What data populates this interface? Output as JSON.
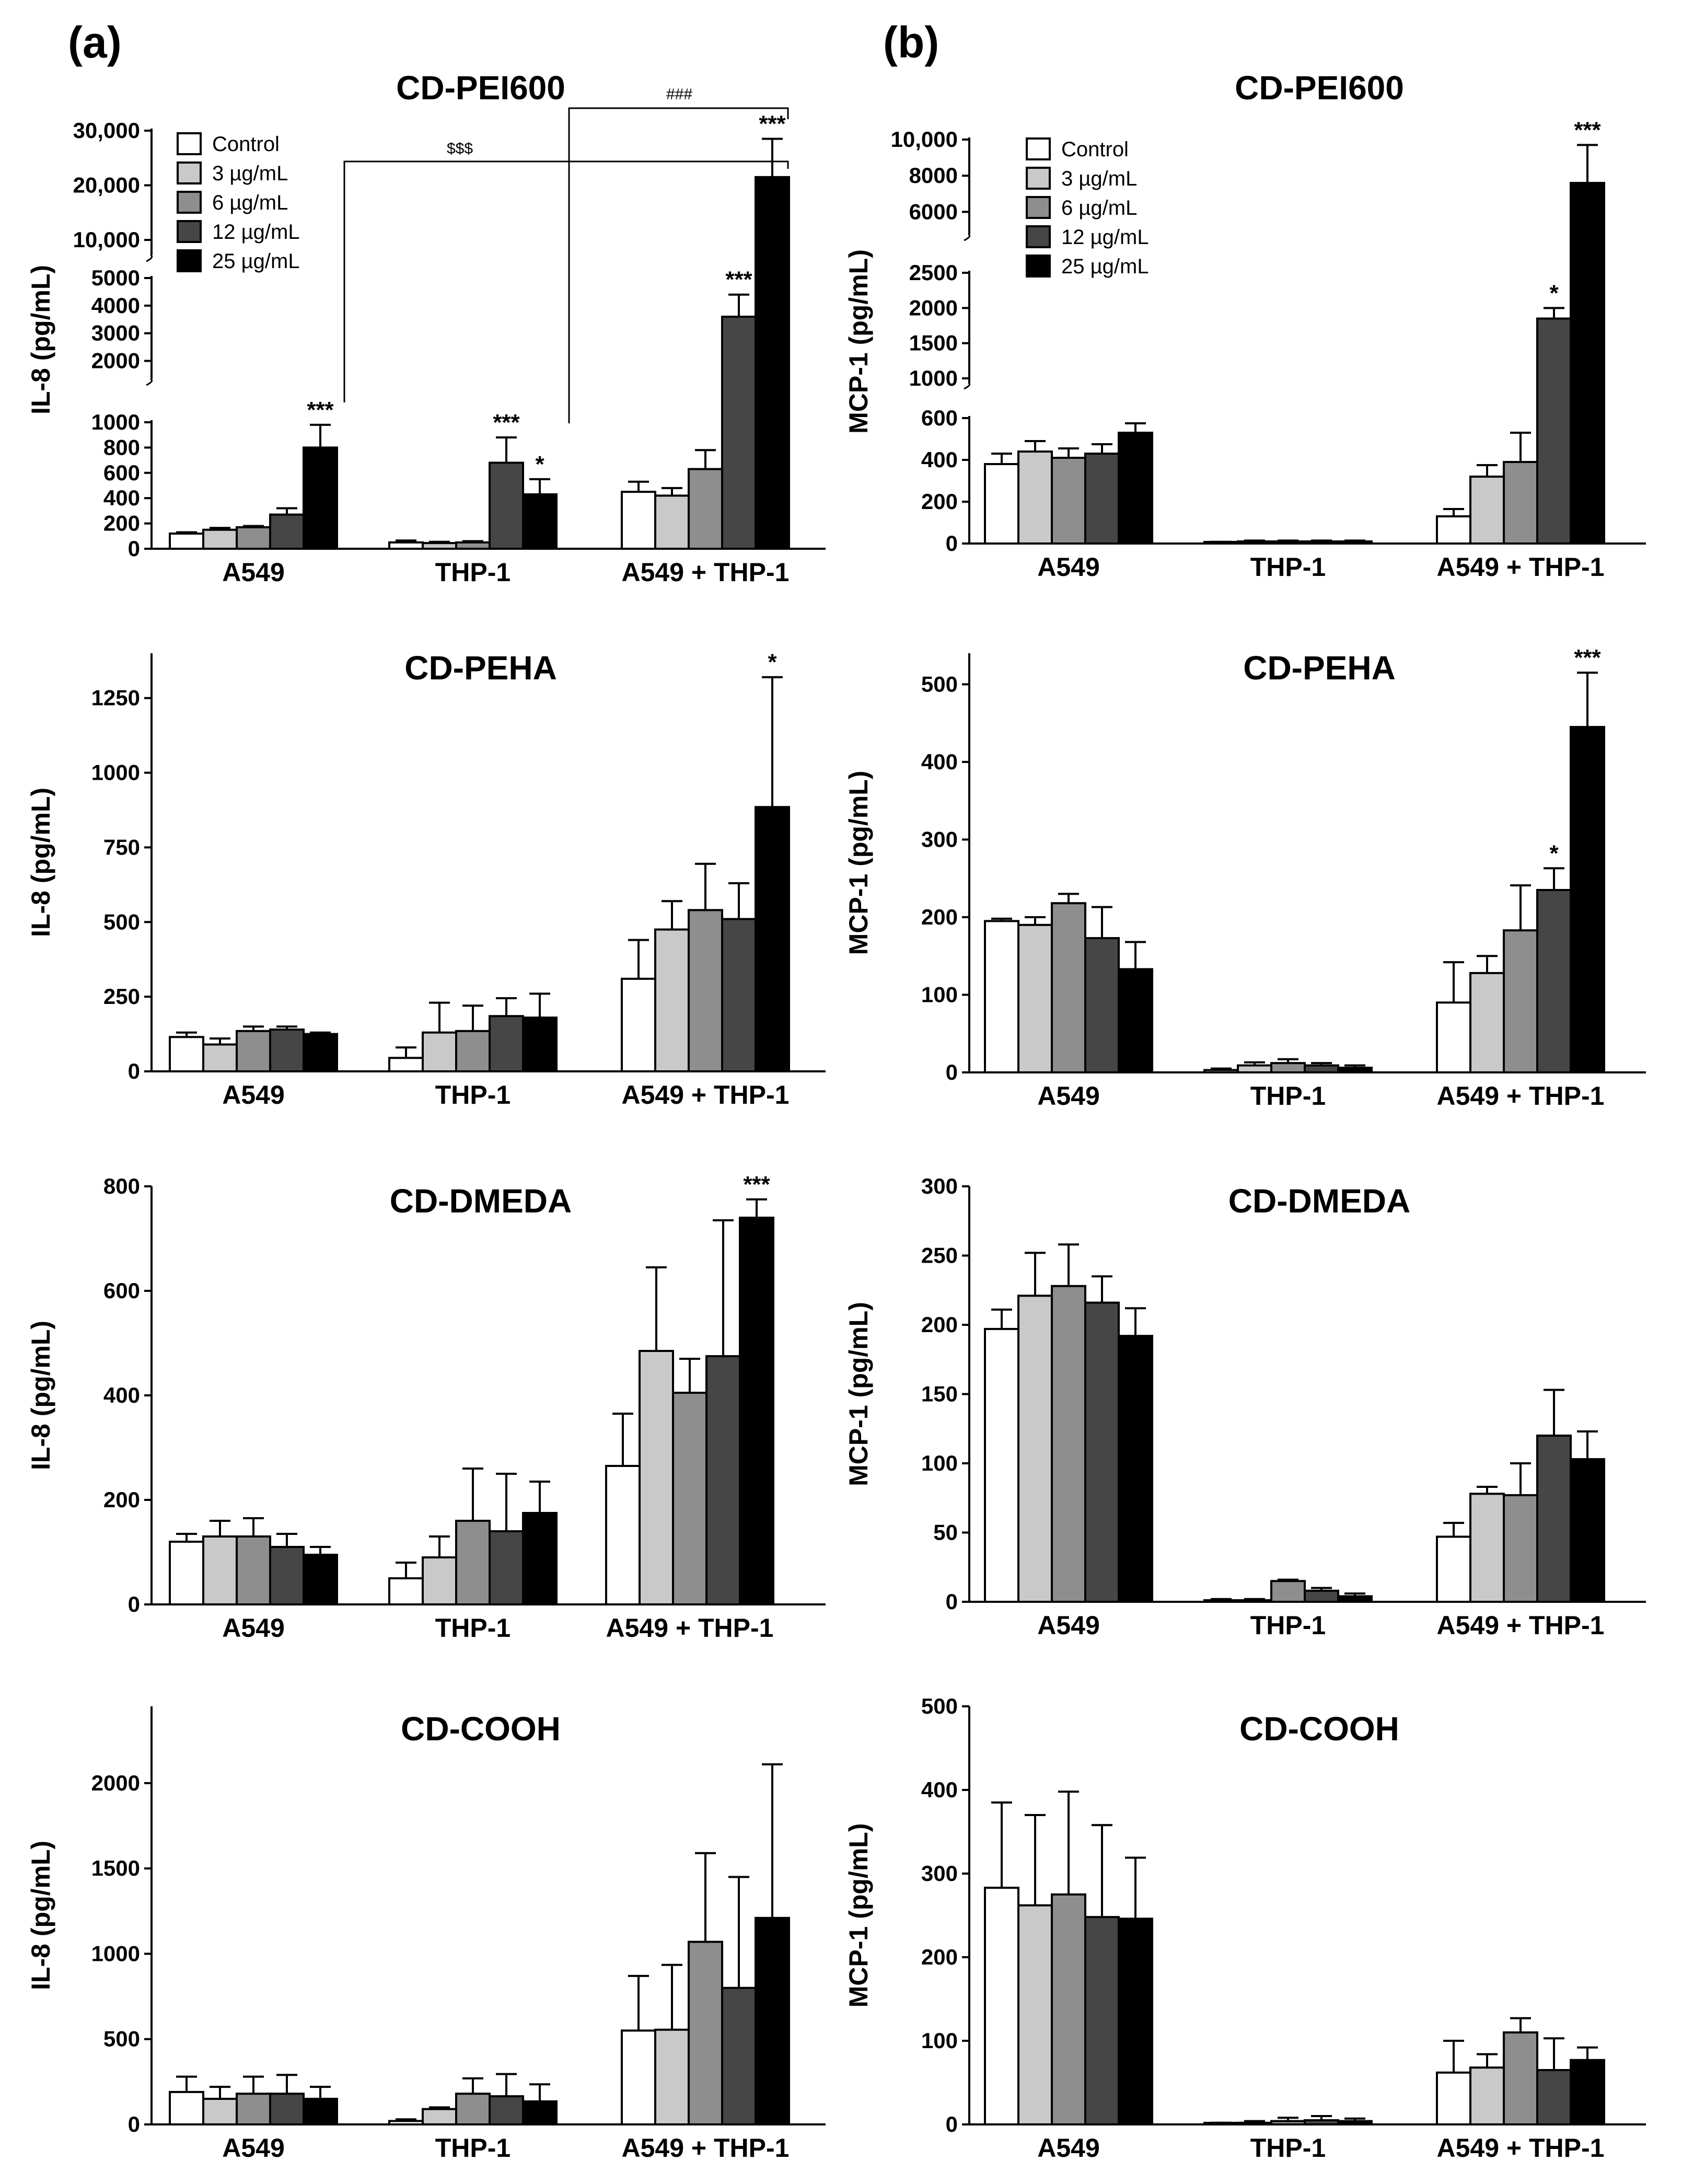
{
  "panel_labels": [
    "(a)",
    "(b)"
  ],
  "legend": {
    "items": [
      {
        "label": "Control",
        "color": "#ffffff"
      },
      {
        "label": "3 µg/mL",
        "color": "#c9c9c9"
      },
      {
        "label": "6 µg/mL",
        "color": "#8e8e8e"
      },
      {
        "label": "12 µg/mL",
        "color": "#464646"
      },
      {
        "label": "25 µg/mL",
        "color": "#000000"
      }
    ]
  },
  "chart_data": [
    {
      "type": "bar",
      "panel": "a",
      "title": "CD-PEI600",
      "ylabel": "IL-8 (pg/mL)",
      "xlabel": "",
      "categories": [
        "A549",
        "THP-1",
        "A549 + THP-1"
      ],
      "axis_segments": [
        {
          "range": [
            0,
            1000
          ],
          "ticks": [
            0,
            200,
            400,
            600,
            800,
            1000
          ],
          "tick_labels": [
            "0",
            "200",
            "400",
            "600",
            "800",
            "1000"
          ]
        },
        {
          "range": [
            1500,
            5000
          ],
          "ticks": [
            2000,
            3000,
            4000,
            5000
          ],
          "tick_labels": [
            "2000",
            "3000",
            "4000",
            "5000"
          ]
        },
        {
          "range": [
            8000,
            30000
          ],
          "ticks": [
            10000,
            20000,
            30000
          ],
          "tick_labels": [
            "10,000",
            "20,000",
            "30,000"
          ]
        }
      ],
      "series": [
        {
          "name": "Control",
          "values": [
            120,
            50,
            450
          ],
          "errors": [
            10,
            15,
            80
          ]
        },
        {
          "name": "3 µg/mL",
          "values": [
            150,
            45,
            420
          ],
          "errors": [
            15,
            10,
            60
          ]
        },
        {
          "name": "6 µg/mL",
          "values": [
            170,
            50,
            630
          ],
          "errors": [
            10,
            10,
            150
          ]
        },
        {
          "name": "12 µg/mL",
          "values": [
            270,
            680,
            3600
          ],
          "errors": [
            50,
            200,
            800
          ]
        },
        {
          "name": "25 µg/mL",
          "values": [
            800,
            430,
            21500
          ],
          "errors": [
            180,
            120,
            7000
          ]
        }
      ],
      "annotations": [
        {
          "category": 0,
          "series": 4,
          "text": "***"
        },
        {
          "category": 1,
          "series": 3,
          "text": "***"
        },
        {
          "category": 1,
          "series": 4,
          "text": "*"
        },
        {
          "category": 2,
          "series": 3,
          "text": "***"
        },
        {
          "category": 2,
          "series": 4,
          "text": "***"
        }
      ],
      "brackets": [
        "###",
        "$$$"
      ]
    },
    {
      "type": "bar",
      "panel": "b",
      "title": "CD-PEI600",
      "ylabel": "MCP-1 (pg/mL)",
      "xlabel": "",
      "categories": [
        "A549",
        "THP-1",
        "A549 + THP-1"
      ],
      "axis_segments": [
        {
          "range": [
            0,
            600
          ],
          "ticks": [
            0,
            200,
            400,
            600
          ],
          "tick_labels": [
            "0",
            "200",
            "400",
            "600"
          ]
        },
        {
          "range": [
            1000,
            2500
          ],
          "ticks": [
            1000,
            1500,
            2000,
            2500
          ],
          "tick_labels": [
            "1000",
            "1500",
            "2000",
            "2500"
          ]
        },
        {
          "range": [
            5000,
            10000
          ],
          "ticks": [
            6000,
            8000,
            10000
          ],
          "tick_labels": [
            "6000",
            "8000",
            "10,000"
          ]
        }
      ],
      "series": [
        {
          "name": "Control",
          "values": [
            380,
            5,
            130
          ],
          "errors": [
            50,
            3,
            35
          ]
        },
        {
          "name": "3 µg/mL",
          "values": [
            440,
            10,
            320
          ],
          "errors": [
            50,
            4,
            55
          ]
        },
        {
          "name": "6 µg/mL",
          "values": [
            410,
            10,
            390
          ],
          "errors": [
            45,
            4,
            140
          ]
        },
        {
          "name": "12 µg/mL",
          "values": [
            430,
            10,
            1850
          ],
          "errors": [
            45,
            4,
            150
          ]
        },
        {
          "name": "25 µg/mL",
          "values": [
            530,
            10,
            7600
          ],
          "errors": [
            45,
            4,
            2100
          ]
        }
      ],
      "annotations": [
        {
          "category": 2,
          "series": 3,
          "text": "*"
        },
        {
          "category": 2,
          "series": 4,
          "text": "***"
        }
      ]
    },
    {
      "type": "bar",
      "panel": "a",
      "title": "CD-PEHA",
      "ylabel": "IL-8 (pg/mL)",
      "xlabel": "",
      "categories": [
        "A549",
        "THP-1",
        "A549 + THP-1"
      ],
      "ylim": [
        0,
        1400
      ],
      "yticks": [
        0,
        250,
        500,
        750,
        1000,
        1250
      ],
      "series": [
        {
          "name": "Control",
          "values": [
            115,
            45,
            310
          ],
          "errors": [
            15,
            35,
            130
          ]
        },
        {
          "name": "3 µg/mL",
          "values": [
            90,
            130,
            475
          ],
          "errors": [
            20,
            100,
            95
          ]
        },
        {
          "name": "6 µg/mL",
          "values": [
            135,
            135,
            540
          ],
          "errors": [
            15,
            85,
            155
          ]
        },
        {
          "name": "12 µg/mL",
          "values": [
            140,
            185,
            510
          ],
          "errors": [
            10,
            60,
            120
          ]
        },
        {
          "name": "25 µg/mL",
          "values": [
            125,
            180,
            885
          ],
          "errors": [
            5,
            80,
            435
          ]
        }
      ],
      "annotations": [
        {
          "category": 2,
          "series": 4,
          "text": "*"
        }
      ]
    },
    {
      "type": "bar",
      "panel": "b",
      "title": "CD-PEHA",
      "ylabel": "MCP-1 (pg/mL)",
      "xlabel": "",
      "categories": [
        "A549",
        "THP-1",
        "A549 + THP-1"
      ],
      "ylim": [
        0,
        540
      ],
      "yticks": [
        0,
        100,
        200,
        300,
        400,
        500
      ],
      "series": [
        {
          "name": "Control",
          "values": [
            195,
            3,
            90
          ],
          "errors": [
            3,
            2,
            52
          ]
        },
        {
          "name": "3 µg/mL",
          "values": [
            190,
            9,
            128
          ],
          "errors": [
            10,
            4,
            22
          ]
        },
        {
          "name": "6 µg/mL",
          "values": [
            218,
            12,
            183
          ],
          "errors": [
            12,
            5,
            58
          ]
        },
        {
          "name": "12 µg/mL",
          "values": [
            173,
            9,
            235
          ],
          "errors": [
            40,
            3,
            28
          ]
        },
        {
          "name": "25 µg/mL",
          "values": [
            133,
            6,
            445
          ],
          "errors": [
            35,
            3,
            70
          ]
        }
      ],
      "annotations": [
        {
          "category": 2,
          "series": 3,
          "text": "*"
        },
        {
          "category": 2,
          "series": 4,
          "text": "***"
        }
      ]
    },
    {
      "type": "bar",
      "panel": "a",
      "title": "CD-DMEDA",
      "ylabel": "IL-8 (pg/mL)",
      "xlabel": "",
      "categories": [
        "A549",
        "THP-1",
        "A549 + THP-1"
      ],
      "ylim": [
        0,
        800
      ],
      "yticks": [
        0,
        200,
        400,
        600,
        800
      ],
      "series": [
        {
          "name": "Control",
          "values": [
            120,
            50,
            265
          ],
          "errors": [
            15,
            30,
            100
          ]
        },
        {
          "name": "3 µg/mL",
          "values": [
            130,
            90,
            485
          ],
          "errors": [
            30,
            40,
            160
          ]
        },
        {
          "name": "6 µg/mL",
          "values": [
            130,
            160,
            405
          ],
          "errors": [
            35,
            100,
            65
          ]
        },
        {
          "name": "12 µg/mL",
          "values": [
            110,
            140,
            475
          ],
          "errors": [
            25,
            110,
            260
          ]
        },
        {
          "name": "25 µg/mL",
          "values": [
            95,
            175,
            740
          ],
          "errors": [
            15,
            60,
            35
          ]
        }
      ],
      "annotations": [
        {
          "category": 2,
          "series": 4,
          "text": "***"
        }
      ]
    },
    {
      "type": "bar",
      "panel": "b",
      "title": "CD-DMEDA",
      "ylabel": "MCP-1 (pg/mL)",
      "xlabel": "",
      "categories": [
        "A549",
        "THP-1",
        "A549 + THP-1"
      ],
      "ylim": [
        0,
        300
      ],
      "yticks": [
        0,
        50,
        100,
        150,
        200,
        250,
        300
      ],
      "series": [
        {
          "name": "Control",
          "values": [
            197,
            1,
            47
          ],
          "errors": [
            14,
            1,
            10
          ]
        },
        {
          "name": "3 µg/mL",
          "values": [
            221,
            1,
            78
          ],
          "errors": [
            31,
            1,
            5
          ]
        },
        {
          "name": "6 µg/mL",
          "values": [
            228,
            15,
            77
          ],
          "errors": [
            30,
            1,
            23
          ]
        },
        {
          "name": "12 µg/mL",
          "values": [
            216,
            8,
            120
          ],
          "errors": [
            19,
            2,
            33
          ]
        },
        {
          "name": "25 µg/mL",
          "values": [
            192,
            4,
            103
          ],
          "errors": [
            20,
            2,
            20
          ]
        }
      ]
    },
    {
      "type": "bar",
      "panel": "a",
      "title": "CD-COOH",
      "ylabel": "IL-8 (pg/mL)",
      "xlabel": "",
      "categories": [
        "A549",
        "THP-1",
        "A549 + THP-1"
      ],
      "ylim": [
        0,
        2450
      ],
      "yticks": [
        0,
        500,
        1000,
        1500,
        2000
      ],
      "series": [
        {
          "name": "Control",
          "values": [
            190,
            20,
            550
          ],
          "errors": [
            90,
            10,
            320
          ]
        },
        {
          "name": "3 µg/mL",
          "values": [
            150,
            90,
            555
          ],
          "errors": [
            70,
            10,
            380
          ]
        },
        {
          "name": "6 µg/mL",
          "values": [
            180,
            180,
            1070
          ],
          "errors": [
            100,
            90,
            520
          ]
        },
        {
          "name": "12 µg/mL",
          "values": [
            180,
            165,
            800
          ],
          "errors": [
            110,
            130,
            650
          ]
        },
        {
          "name": "25 µg/mL",
          "values": [
            150,
            135,
            1210
          ],
          "errors": [
            70,
            100,
            900
          ]
        }
      ]
    },
    {
      "type": "bar",
      "panel": "b",
      "title": "CD-COOH",
      "ylabel": "MCP-1 (pg/mL)",
      "xlabel": "",
      "categories": [
        "A549",
        "THP-1",
        "A549 + THP-1"
      ],
      "ylim": [
        0,
        500
      ],
      "yticks": [
        0,
        100,
        200,
        300,
        400,
        500
      ],
      "series": [
        {
          "name": "Control",
          "values": [
            283,
            1,
            62
          ],
          "errors": [
            102,
            1,
            38
          ]
        },
        {
          "name": "3 µg/mL",
          "values": [
            262,
            2,
            68
          ],
          "errors": [
            108,
            2,
            16
          ]
        },
        {
          "name": "6 µg/mL",
          "values": [
            275,
            4,
            110
          ],
          "errors": [
            123,
            4,
            17
          ]
        },
        {
          "name": "12 µg/mL",
          "values": [
            248,
            5,
            65
          ],
          "errors": [
            110,
            5,
            38
          ]
        },
        {
          "name": "25 µg/mL",
          "values": [
            246,
            4,
            77
          ],
          "errors": [
            73,
            3,
            15
          ]
        }
      ]
    }
  ]
}
